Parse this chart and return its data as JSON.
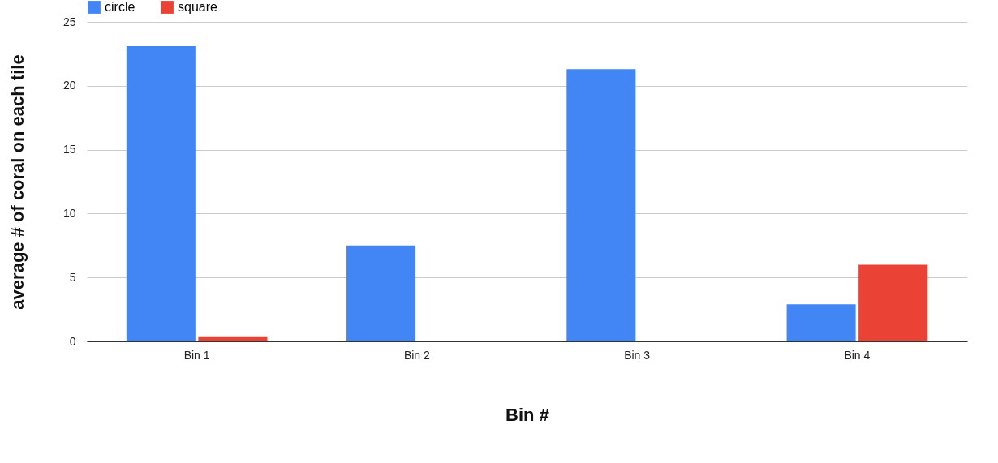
{
  "chart_data": {
    "type": "bar",
    "xlabel": "Bin #",
    "ylabel": "average # of coral on each tile",
    "categories": [
      "Bin 1",
      "Bin 2",
      "Bin 3",
      "Bin 4"
    ],
    "series": [
      {
        "name": "circle",
        "color": "#4285f4",
        "values": [
          23.1,
          7.5,
          21.3,
          2.9
        ]
      },
      {
        "name": "square",
        "color": "#ea4335",
        "values": [
          0.4,
          0,
          0,
          6
        ]
      }
    ],
    "ylim": [
      0,
      25
    ],
    "yticks": [
      0,
      5,
      10,
      15,
      20,
      25
    ],
    "grid": "y",
    "legend": "top"
  }
}
